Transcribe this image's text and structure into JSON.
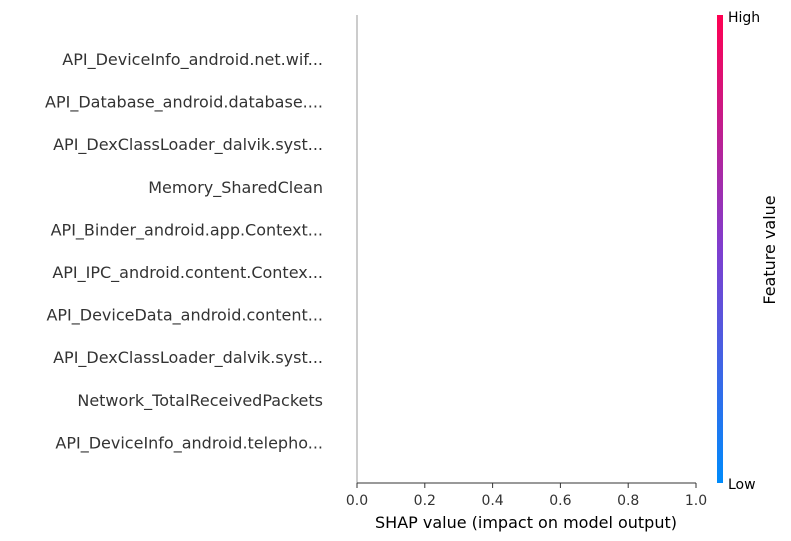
{
  "chart_data": {
    "type": "scatter",
    "features": [
      "API_DeviceInfo_android.net.wif...",
      "API_Database_android.database....",
      "API_DexClassLoader_dalvik.syst...",
      "Memory_SharedClean",
      "API_Binder_android.app.Context...",
      "API_IPC_android.content.Contex...",
      "API_DeviceData_android.content...",
      "API_DexClassLoader_dalvik.syst...",
      "Network_TotalReceivedPackets",
      "API_DeviceInfo_android.telepho..."
    ],
    "xlabel": "SHAP value (impact on model output)",
    "xlim": [
      0.0,
      1.0
    ],
    "xticks": [
      0.0,
      0.2,
      0.4,
      0.6,
      0.8,
      1.0
    ],
    "xtick_labels": [
      "0.0",
      "0.2",
      "0.4",
      "0.6",
      "0.8",
      "1.0"
    ],
    "points": [],
    "colorbar": {
      "title": "Feature value",
      "high_label": "High",
      "low_label": "Low",
      "colors": [
        "#008bfb",
        "#7f3ecf",
        "#ff0052"
      ]
    },
    "zero_line_color": "#999999"
  }
}
